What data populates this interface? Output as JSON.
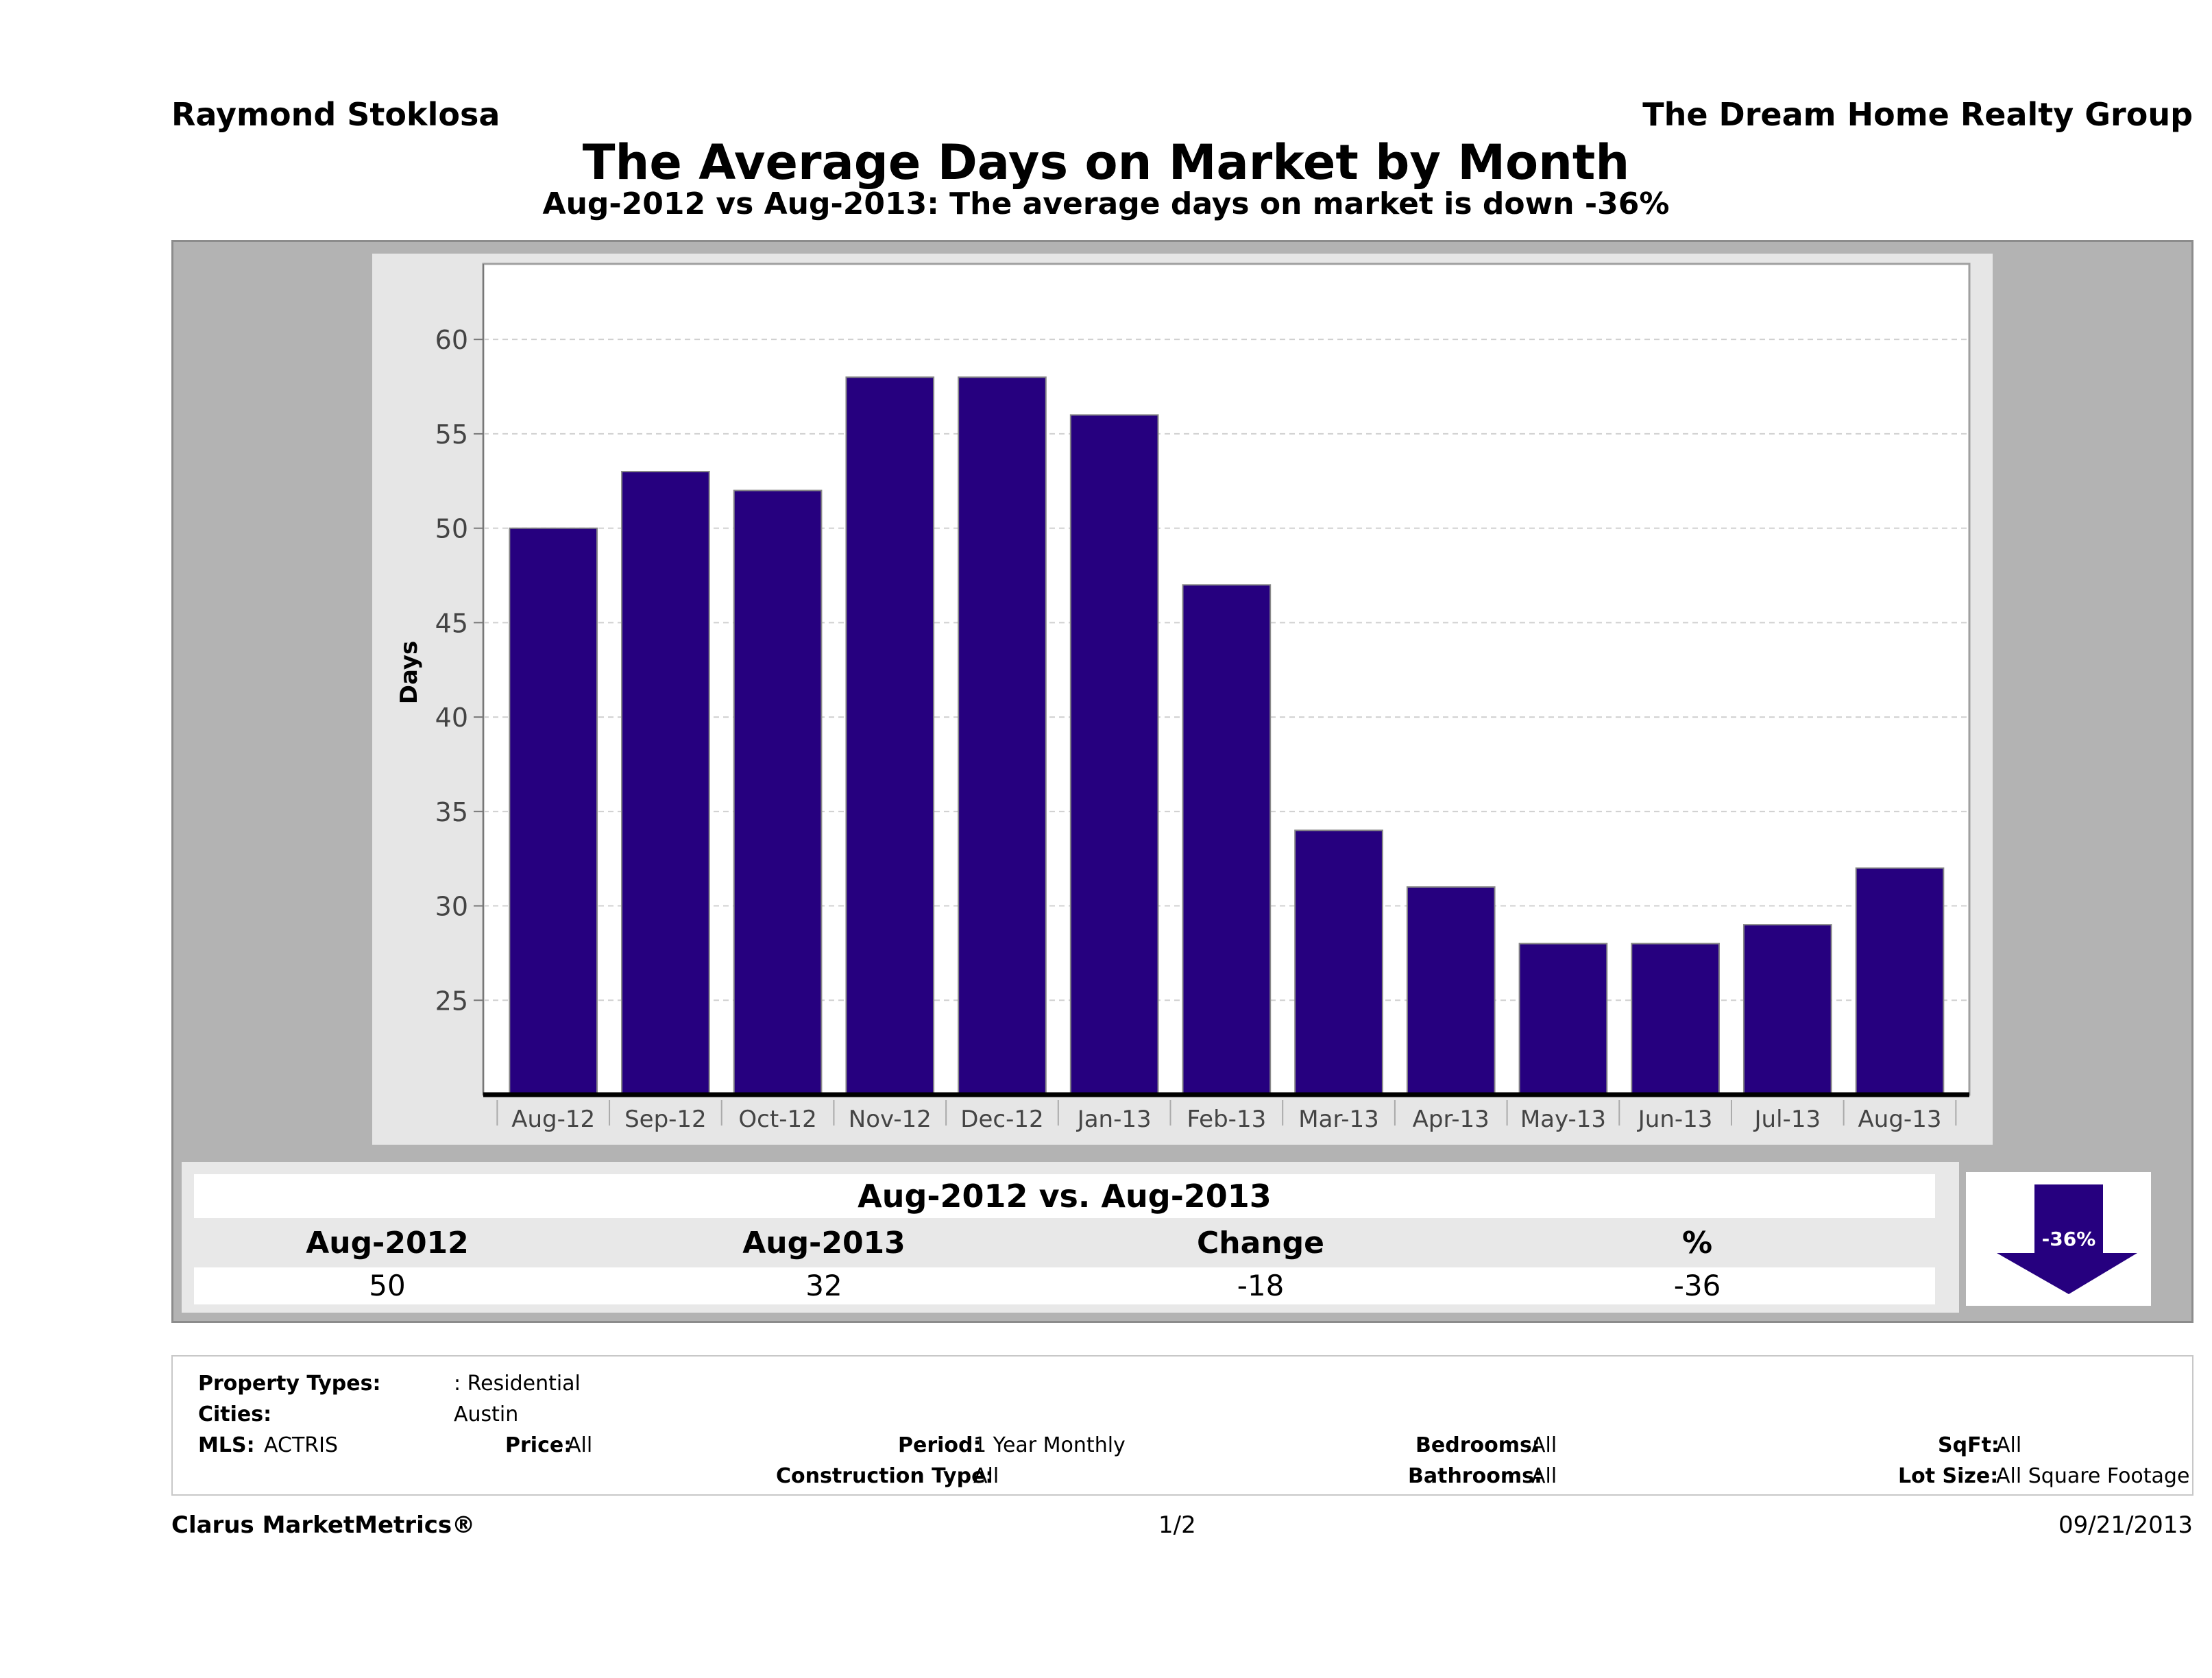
{
  "header": {
    "agent": "Raymond Stoklosa",
    "company": "The Dream Home Realty Group",
    "title": "The Average Days on Market by Month",
    "subtitle": "Aug-2012 vs Aug-2013: The average days on market is down -36%"
  },
  "chart_data": {
    "type": "bar",
    "ylabel": "Days",
    "xlabel": "",
    "categories": [
      "Aug-12",
      "Sep-12",
      "Oct-12",
      "Nov-12",
      "Dec-12",
      "Jan-13",
      "Feb-13",
      "Mar-13",
      "Apr-13",
      "May-13",
      "Jun-13",
      "Jul-13",
      "Aug-13"
    ],
    "values": [
      50,
      53,
      52,
      58,
      58,
      56,
      47,
      34,
      31,
      28,
      28,
      29,
      32
    ],
    "ylim": [
      20,
      64
    ],
    "yticks": [
      25,
      30,
      35,
      40,
      45,
      50,
      55,
      60
    ],
    "grid": true,
    "bar_color": "#26007f"
  },
  "summary": {
    "title": "Aug-2012 vs. Aug-2013",
    "headers": [
      "Aug-2012",
      "Aug-2013",
      "Change",
      "%"
    ],
    "values": [
      "50",
      "32",
      "-18",
      "-36"
    ],
    "badge": "-36%",
    "badge_color": "#26007f"
  },
  "properties": {
    "property_types_label": "Property Types:",
    "property_types_value": ": Residential",
    "cities_label": "Cities:",
    "cities_value": "Austin",
    "mls_label": "MLS:",
    "mls_value": "ACTRIS",
    "price_label": "Price:",
    "price_value": "All",
    "period_label": "Period:",
    "period_value": "1 Year Monthly",
    "construction_label": "Construction Type:",
    "construction_value": "All",
    "bedrooms_label": "Bedrooms:",
    "bedrooms_value": "All",
    "bathrooms_label": "Bathrooms:",
    "bathrooms_value": "All",
    "sqft_label": "SqFt:",
    "sqft_value": "All",
    "lotsize_label": "Lot Size:",
    "lotsize_value": "All Square Footage"
  },
  "footer": {
    "brand": "Clarus MarketMetrics®",
    "page": "1/2",
    "date": "09/21/2013"
  }
}
